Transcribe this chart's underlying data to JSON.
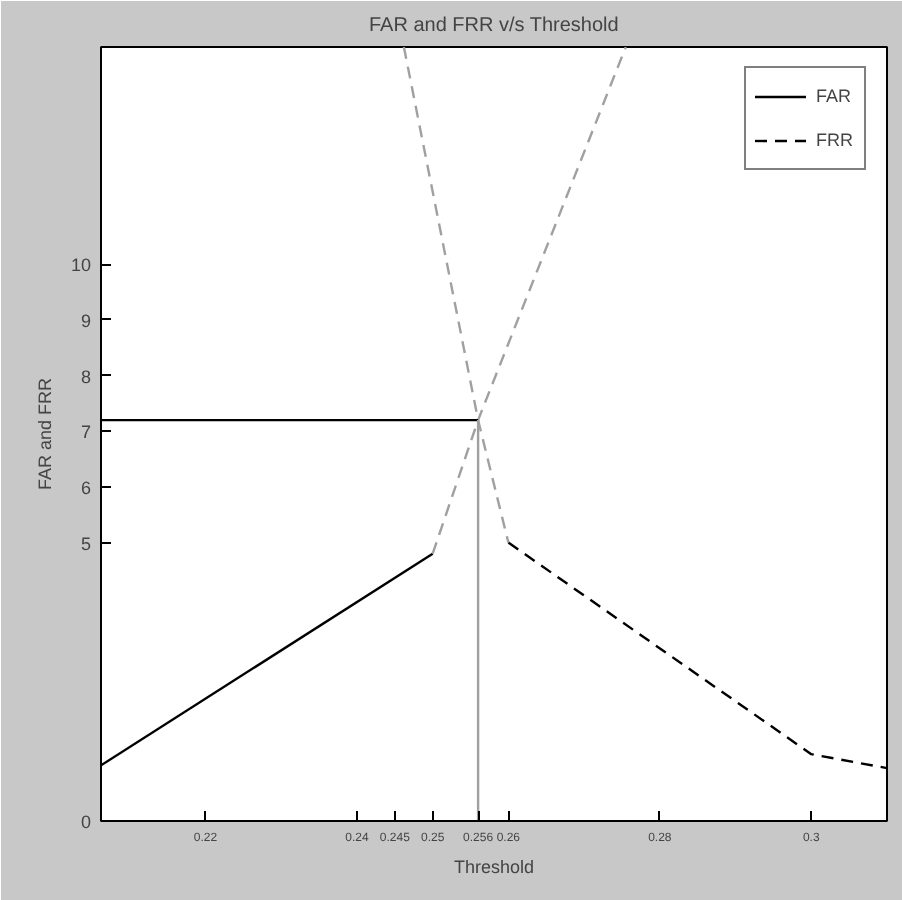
{
  "chart_data": {
    "type": "line",
    "title": "FAR and FRR v/s Threshold",
    "xlabel": "Threshold",
    "ylabel": "FAR and FRR",
    "xlim": [
      0.2062,
      0.31
    ],
    "ylim": [
      0,
      13.9
    ],
    "xticks": [
      0.22,
      0.24,
      0.245,
      0.25,
      0.256,
      0.26,
      0.28,
      {
        "value": 0.3,
        "label": "0.3"
      }
    ],
    "yticks": [
      0,
      5,
      6,
      7,
      8,
      9,
      10
    ],
    "grid": false,
    "legend": "top right",
    "series": [
      {
        "name": "FAR",
        "color": "#000000",
        "line_style": "solid",
        "x": [
          0.2062,
          0.25
        ],
        "values": [
          1.0,
          4.8
        ]
      },
      {
        "color": "#a0a0a0",
        "line_style": "dashed",
        "x": [
          0.25,
          0.256,
          0.2755
        ],
        "values": [
          4.8,
          7.2,
          13.9
        ]
      },
      {
        "name": "FRR",
        "color": "#000000",
        "line_style": "dashed",
        "x": [
          0.26,
          0.3,
          0.31
        ],
        "values": [
          5.0,
          1.2,
          0.95
        ]
      },
      {
        "color": "#a0a0a0",
        "line_style": "dashed",
        "x": [
          0.2462,
          0.256,
          0.26
        ],
        "values": [
          13.9,
          7.2,
          5.0
        ]
      },
      {
        "color": "#000000",
        "line_style": "solid",
        "x": [
          0.2062,
          0.256
        ],
        "values": [
          7.2,
          7.2
        ]
      },
      {
        "color": "#a0a0a0",
        "line_style": "solid",
        "x": [
          0.256,
          0.256
        ],
        "values": [
          0,
          7.2
        ]
      }
    ]
  }
}
